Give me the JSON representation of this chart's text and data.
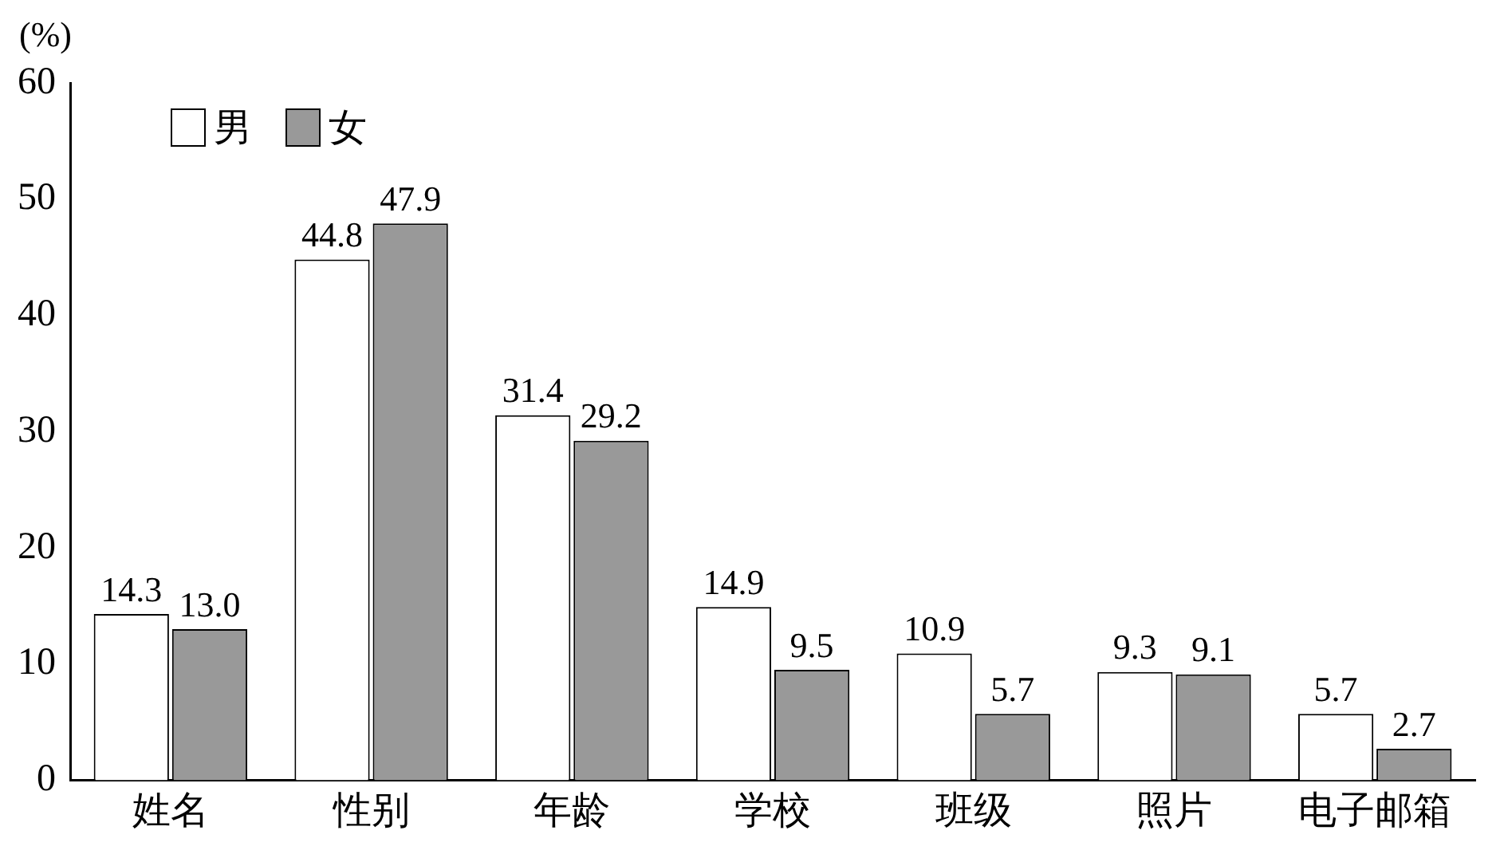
{
  "chart_data": {
    "type": "bar",
    "ylabel": "(%)",
    "categories": [
      "姓名",
      "性别",
      "年龄",
      "学校",
      "班级",
      "照片",
      "电子邮箱"
    ],
    "series": [
      {
        "name": "男",
        "color": "#ffffff",
        "values": [
          14.3,
          44.8,
          31.4,
          14.9,
          10.9,
          9.3,
          5.7
        ],
        "value_labels": [
          "14.3",
          "44.8",
          "31.4",
          "14.9",
          "10.9",
          "9.3",
          "5.7"
        ]
      },
      {
        "name": "女",
        "color": "#999999",
        "values": [
          13.0,
          47.9,
          29.2,
          9.5,
          5.7,
          9.1,
          2.7
        ],
        "value_labels": [
          "13.0",
          "47.9",
          "29.2",
          "9.5",
          "5.7",
          "9.1",
          "2.7"
        ]
      }
    ],
    "ylim": [
      0,
      60
    ],
    "yticks": [
      0,
      10,
      20,
      30,
      40,
      50,
      60
    ],
    "grid": false,
    "legend": "top left"
  }
}
